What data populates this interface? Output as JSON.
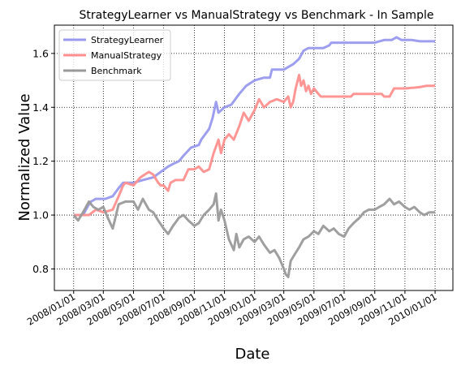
{
  "chart_data": {
    "type": "line",
    "title": "StrategyLearner vs ManualStrategy vs Benchmark - In Sample",
    "xlabel": "Date",
    "ylabel": "Normalized Value",
    "x_tick_labels": [
      "2008/01/01",
      "2008/03/01",
      "2008/05/01",
      "2008/07/01",
      "2008/09/01",
      "2008/11/01",
      "2009/01/01",
      "2009/03/01",
      "2009/05/01",
      "2009/07/01",
      "2009/09/01",
      "2009/11/01",
      "2010/01/01"
    ],
    "y_tick_labels": [
      "0.8",
      "1.0",
      "1.2",
      "1.4",
      "1.6"
    ],
    "y_ticks": [
      0.8,
      1.0,
      1.2,
      1.4,
      1.6
    ],
    "xlim": [
      "2007/11/23",
      "2010/02/06"
    ],
    "ylim": [
      0.72,
      1.705
    ],
    "grid": true,
    "grid_style": "dotted",
    "legend_position": "top-left",
    "series": [
      {
        "name": "StrategyLearner",
        "color": "#9999ee",
        "points": [
          [
            "2008/01/01",
            1.0
          ],
          [
            "2008/01/20",
            1.0
          ],
          [
            "2008/02/01",
            1.04
          ],
          [
            "2008/02/05",
            1.05
          ],
          [
            "2008/02/15",
            1.06
          ],
          [
            "2008/03/05",
            1.06
          ],
          [
            "2008/03/20",
            1.07
          ],
          [
            "2008/04/01",
            1.1
          ],
          [
            "2008/04/10",
            1.12
          ],
          [
            "2008/05/01",
            1.12
          ],
          [
            "2008/05/20",
            1.13
          ],
          [
            "2008/06/10",
            1.14
          ],
          [
            "2008/06/25",
            1.16
          ],
          [
            "2008/07/10",
            1.18
          ],
          [
            "2008/07/20",
            1.19
          ],
          [
            "2008/08/01",
            1.2
          ],
          [
            "2008/08/10",
            1.22
          ],
          [
            "2008/08/25",
            1.25
          ],
          [
            "2008/09/10",
            1.26
          ],
          [
            "2008/09/15",
            1.28
          ],
          [
            "2008/10/01",
            1.32
          ],
          [
            "2008/10/08",
            1.36
          ],
          [
            "2008/10/15",
            1.42
          ],
          [
            "2008/10/20",
            1.38
          ],
          [
            "2008/11/01",
            1.4
          ],
          [
            "2008/11/15",
            1.41
          ],
          [
            "2008/12/01",
            1.45
          ],
          [
            "2008/12/15",
            1.48
          ],
          [
            "2009/01/01",
            1.5
          ],
          [
            "2009/01/20",
            1.51
          ],
          [
            "2009/02/01",
            1.51
          ],
          [
            "2009/02/05",
            1.54
          ],
          [
            "2009/03/01",
            1.54
          ],
          [
            "2009/03/20",
            1.56
          ],
          [
            "2009/04/01",
            1.58
          ],
          [
            "2009/04/10",
            1.61
          ],
          [
            "2009/04/20",
            1.62
          ],
          [
            "2009/05/01",
            1.62
          ],
          [
            "2009/05/20",
            1.62
          ],
          [
            "2009/06/01",
            1.63
          ],
          [
            "2009/06/05",
            1.64
          ],
          [
            "2009/07/01",
            1.64
          ],
          [
            "2009/08/01",
            1.64
          ],
          [
            "2009/09/01",
            1.64
          ],
          [
            "2009/09/20",
            1.65
          ],
          [
            "2009/10/05",
            1.65
          ],
          [
            "2009/10/15",
            1.66
          ],
          [
            "2009/10/25",
            1.65
          ],
          [
            "2009/11/15",
            1.65
          ],
          [
            "2009/12/01",
            1.645
          ],
          [
            "2010/01/01",
            1.645
          ]
        ]
      },
      {
        "name": "ManualStrategy",
        "color": "#ff9090",
        "points": [
          [
            "2008/01/01",
            1.0
          ],
          [
            "2008/01/20",
            1.0
          ],
          [
            "2008/02/01",
            1.0
          ],
          [
            "2008/02/15",
            1.02
          ],
          [
            "2008/03/01",
            1.01
          ],
          [
            "2008/03/20",
            1.02
          ],
          [
            "2008/04/01",
            1.07
          ],
          [
            "2008/04/10",
            1.11
          ],
          [
            "2008/04/15",
            1.12
          ],
          [
            "2008/05/01",
            1.11
          ],
          [
            "2008/05/15",
            1.14
          ],
          [
            "2008/06/01",
            1.16
          ],
          [
            "2008/06/10",
            1.15
          ],
          [
            "2008/06/20",
            1.12
          ],
          [
            "2008/06/25",
            1.11
          ],
          [
            "2008/07/01",
            1.11
          ],
          [
            "2008/07/10",
            1.09
          ],
          [
            "2008/07/15",
            1.12
          ],
          [
            "2008/07/25",
            1.13
          ],
          [
            "2008/08/10",
            1.13
          ],
          [
            "2008/08/20",
            1.17
          ],
          [
            "2008/09/01",
            1.17
          ],
          [
            "2008/09/10",
            1.18
          ],
          [
            "2008/09/20",
            1.16
          ],
          [
            "2008/10/01",
            1.17
          ],
          [
            "2008/10/10",
            1.23
          ],
          [
            "2008/10/20",
            1.28
          ],
          [
            "2008/10/25",
            1.23
          ],
          [
            "2008/11/01",
            1.28
          ],
          [
            "2008/11/10",
            1.3
          ],
          [
            "2008/11/20",
            1.28
          ],
          [
            "2008/12/01",
            1.33
          ],
          [
            "2008/12/10",
            1.38
          ],
          [
            "2008/12/20",
            1.35
          ],
          [
            "2009/01/01",
            1.39
          ],
          [
            "2009/01/10",
            1.43
          ],
          [
            "2009/01/20",
            1.4
          ],
          [
            "2009/02/01",
            1.42
          ],
          [
            "2009/02/15",
            1.43
          ],
          [
            "2009/03/01",
            1.42
          ],
          [
            "2009/03/10",
            1.44
          ],
          [
            "2009/03/15",
            1.4
          ],
          [
            "2009/03/20",
            1.42
          ],
          [
            "2009/03/25",
            1.47
          ],
          [
            "2009/04/01",
            1.52
          ],
          [
            "2009/04/05",
            1.48
          ],
          [
            "2009/04/10",
            1.5
          ],
          [
            "2009/04/15",
            1.46
          ],
          [
            "2009/04/20",
            1.48
          ],
          [
            "2009/04/25",
            1.45
          ],
          [
            "2009/05/01",
            1.47
          ],
          [
            "2009/05/10",
            1.45
          ],
          [
            "2009/05/15",
            1.44
          ],
          [
            "2009/06/01",
            1.44
          ],
          [
            "2009/07/01",
            1.44
          ],
          [
            "2009/07/15",
            1.44
          ],
          [
            "2009/07/20",
            1.45
          ],
          [
            "2009/08/01",
            1.45
          ],
          [
            "2009/08/15",
            1.45
          ],
          [
            "2009/09/01",
            1.45
          ],
          [
            "2009/09/15",
            1.45
          ],
          [
            "2009/09/20",
            1.44
          ],
          [
            "2009/10/01",
            1.44
          ],
          [
            "2009/10/10",
            1.47
          ],
          [
            "2009/11/01",
            1.47
          ],
          [
            "2009/12/01",
            1.475
          ],
          [
            "2009/12/15",
            1.48
          ],
          [
            "2010/01/01",
            1.48
          ]
        ]
      },
      {
        "name": "Benchmark",
        "color": "#9a9a9a",
        "points": [
          [
            "2008/01/01",
            1.0
          ],
          [
            "2008/01/10",
            0.98
          ],
          [
            "2008/01/20",
            1.01
          ],
          [
            "2008/02/01",
            1.05
          ],
          [
            "2008/02/10",
            1.03
          ],
          [
            "2008/02/20",
            1.02
          ],
          [
            "2008/03/01",
            1.03
          ],
          [
            "2008/03/10",
            0.99
          ],
          [
            "2008/03/20",
            0.95
          ],
          [
            "2008/04/01",
            1.04
          ],
          [
            "2008/04/15",
            1.05
          ],
          [
            "2008/05/01",
            1.05
          ],
          [
            "2008/05/10",
            1.02
          ],
          [
            "2008/05/20",
            1.06
          ],
          [
            "2008/06/01",
            1.02
          ],
          [
            "2008/06/10",
            1.01
          ],
          [
            "2008/06/20",
            0.98
          ],
          [
            "2008/07/01",
            0.95
          ],
          [
            "2008/07/10",
            0.93
          ],
          [
            "2008/07/20",
            0.96
          ],
          [
            "2008/08/01",
            0.99
          ],
          [
            "2008/08/10",
            1.0
          ],
          [
            "2008/08/20",
            0.98
          ],
          [
            "2008/09/01",
            0.96
          ],
          [
            "2008/09/10",
            0.97
          ],
          [
            "2008/09/20",
            1.0
          ],
          [
            "2008/10/01",
            1.02
          ],
          [
            "2008/10/10",
            1.04
          ],
          [
            "2008/10/15",
            1.08
          ],
          [
            "2008/10/20",
            0.98
          ],
          [
            "2008/10/25",
            1.02
          ],
          [
            "2008/11/01",
            0.98
          ],
          [
            "2008/11/10",
            0.91
          ],
          [
            "2008/11/20",
            0.87
          ],
          [
            "2008/11/25",
            0.93
          ],
          [
            "2008/12/01",
            0.88
          ],
          [
            "2008/12/10",
            0.91
          ],
          [
            "2008/12/20",
            0.92
          ],
          [
            "2009/01/01",
            0.9
          ],
          [
            "2009/01/10",
            0.92
          ],
          [
            "2009/01/20",
            0.89
          ],
          [
            "2009/02/01",
            0.86
          ],
          [
            "2009/02/10",
            0.87
          ],
          [
            "2009/02/20",
            0.84
          ],
          [
            "2009/03/01",
            0.8
          ],
          [
            "2009/03/05",
            0.78
          ],
          [
            "2009/03/10",
            0.77
          ],
          [
            "2009/03/15",
            0.83
          ],
          [
            "2009/03/25",
            0.86
          ],
          [
            "2009/04/01",
            0.88
          ],
          [
            "2009/04/10",
            0.91
          ],
          [
            "2009/04/20",
            0.92
          ],
          [
            "2009/05/01",
            0.94
          ],
          [
            "2009/05/10",
            0.93
          ],
          [
            "2009/05/20",
            0.96
          ],
          [
            "2009/06/01",
            0.94
          ],
          [
            "2009/06/10",
            0.95
          ],
          [
            "2009/06/20",
            0.93
          ],
          [
            "2009/07/01",
            0.92
          ],
          [
            "2009/07/10",
            0.95
          ],
          [
            "2009/07/20",
            0.97
          ],
          [
            "2009/08/01",
            0.99
          ],
          [
            "2009/08/10",
            1.01
          ],
          [
            "2009/08/20",
            1.02
          ],
          [
            "2009/09/01",
            1.02
          ],
          [
            "2009/09/10",
            1.03
          ],
          [
            "2009/09/20",
            1.04
          ],
          [
            "2009/10/01",
            1.06
          ],
          [
            "2009/10/10",
            1.04
          ],
          [
            "2009/10/20",
            1.05
          ],
          [
            "2009/11/01",
            1.03
          ],
          [
            "2009/11/10",
            1.02
          ],
          [
            "2009/11/20",
            1.03
          ],
          [
            "2009/12/01",
            1.01
          ],
          [
            "2009/12/10",
            1.0
          ],
          [
            "2009/12/20",
            1.01
          ],
          [
            "2010/01/01",
            1.01
          ]
        ]
      }
    ]
  }
}
